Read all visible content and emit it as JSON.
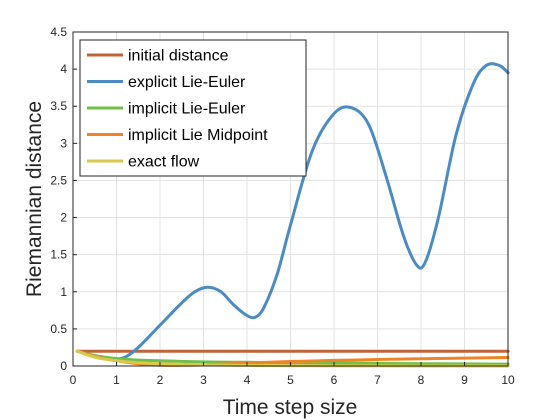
{
  "chart_data": {
    "type": "line",
    "title": "",
    "xlabel": "Time step size",
    "ylabel": "Riemannian distance",
    "xlim": [
      0,
      10
    ],
    "ylim": [
      0,
      4.5
    ],
    "xticks": [
      0,
      1,
      2,
      3,
      4,
      5,
      6,
      7,
      8,
      9,
      10
    ],
    "yticks": [
      0,
      0.5,
      1,
      1.5,
      2,
      2.5,
      3,
      3.5,
      4,
      4.5
    ],
    "xtick_labels": [
      "0",
      "1",
      "2",
      "3",
      "4",
      "5",
      "6",
      "7",
      "8",
      "9",
      "10"
    ],
    "ytick_labels": [
      "0",
      "0.5",
      "1",
      "1.5",
      "2",
      "2.5",
      "3",
      "3.5",
      "4",
      "4.5"
    ],
    "grid": true,
    "legend_position": "top-left",
    "series": [
      {
        "name": "initial distance",
        "color": "#c0643a",
        "x": [
          0.1,
          10
        ],
        "y": [
          0.2,
          0.2
        ]
      },
      {
        "name": "explicit Lie-Euler",
        "color": "#4a8bc4",
        "x": [
          0.1,
          0.5,
          0.9,
          1.2,
          1.5,
          2.0,
          2.5,
          2.8,
          3.1,
          3.4,
          3.7,
          4.0,
          4.2,
          4.4,
          4.7,
          5.0,
          5.5,
          6.0,
          6.4,
          6.8,
          7.2,
          7.6,
          7.9,
          8.1,
          8.4,
          8.8,
          9.2,
          9.5,
          9.8,
          10.0
        ],
        "y": [
          0.2,
          0.12,
          0.09,
          0.12,
          0.25,
          0.55,
          0.85,
          1.0,
          1.06,
          1.0,
          0.82,
          0.68,
          0.66,
          0.8,
          1.25,
          1.9,
          2.9,
          3.4,
          3.48,
          3.25,
          2.55,
          1.75,
          1.36,
          1.4,
          2.0,
          3.1,
          3.8,
          4.05,
          4.05,
          3.95
        ]
      },
      {
        "name": "implicit Lie-Euler",
        "color": "#6fbf4a",
        "x": [
          0.1,
          0.5,
          1,
          1.5,
          2,
          3,
          4,
          5,
          6,
          7,
          8,
          9,
          10
        ],
        "y": [
          0.2,
          0.14,
          0.1,
          0.08,
          0.07,
          0.055,
          0.05,
          0.045,
          0.04,
          0.035,
          0.03,
          0.028,
          0.025
        ]
      },
      {
        "name": "implicit Lie Midpoint",
        "color": "#f08424",
        "x": [
          0.1,
          0.5,
          1,
          1.5,
          2,
          2.5,
          3,
          4,
          5,
          6,
          7,
          8,
          9,
          10
        ],
        "y": [
          0.2,
          0.13,
          0.07,
          0.03,
          0.01,
          0.01,
          0.015,
          0.04,
          0.06,
          0.075,
          0.088,
          0.098,
          0.107,
          0.115
        ]
      },
      {
        "name": "exact flow",
        "color": "#d9c84a",
        "x": [
          0.1,
          0.5,
          1,
          1.5,
          2,
          3,
          4,
          5,
          6,
          7,
          8,
          9,
          10
        ],
        "y": [
          0.2,
          0.12,
          0.07,
          0.045,
          0.03,
          0.015,
          0.008,
          0.004,
          0.002,
          0.001,
          0.0,
          0.0,
          0.0
        ]
      }
    ]
  }
}
